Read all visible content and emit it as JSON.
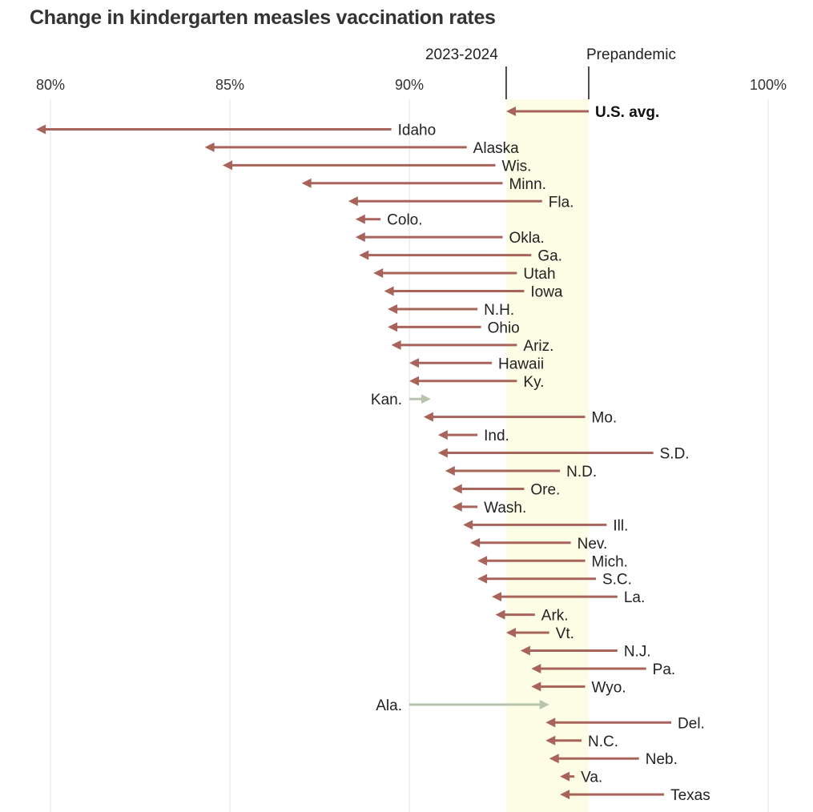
{
  "title": "Change in kindergarten measles vaccination rates",
  "colors": {
    "decrease": "#a8645a",
    "increase": "#b8c4ae",
    "band": "#fdfde6",
    "gridline": "#e3e3e3",
    "refline": "#222222"
  },
  "chart_data": {
    "type": "arrow-dumbbell",
    "title": "Change in kindergarten measles vaccination rates",
    "x_axis": {
      "ticks": [
        80,
        85,
        90,
        100
      ],
      "tick_labels": [
        "80%",
        "85%",
        "90%",
        "100%"
      ],
      "range": [
        80,
        100
      ]
    },
    "reference_lines": [
      {
        "label": "2023-2024",
        "value": 92.7
      },
      {
        "label": "Prepandemic",
        "value": 95.0
      }
    ],
    "rows": [
      {
        "name": "U.S. avg.",
        "from": 95.0,
        "to": 92.7,
        "bold": true
      },
      {
        "name": "Idaho",
        "from": 89.5,
        "to": 79.6
      },
      {
        "name": "Alaska",
        "from": 91.6,
        "to": 84.3
      },
      {
        "name": "Wis.",
        "from": 92.4,
        "to": 84.8
      },
      {
        "name": "Minn.",
        "from": 92.6,
        "to": 87.0
      },
      {
        "name": "Fla.",
        "from": 93.7,
        "to": 88.3
      },
      {
        "name": "Colo.",
        "from": 89.2,
        "to": 88.5
      },
      {
        "name": "Okla.",
        "from": 92.6,
        "to": 88.5
      },
      {
        "name": "Ga.",
        "from": 93.4,
        "to": 88.6
      },
      {
        "name": "Utah",
        "from": 93.0,
        "to": 89.0
      },
      {
        "name": "Iowa",
        "from": 93.2,
        "to": 89.3
      },
      {
        "name": "N.H.",
        "from": 91.9,
        "to": 89.4
      },
      {
        "name": "Ohio",
        "from": 92.0,
        "to": 89.4
      },
      {
        "name": "Ariz.",
        "from": 93.0,
        "to": 89.5
      },
      {
        "name": "Hawaii",
        "from": 92.3,
        "to": 90.0
      },
      {
        "name": "Ky.",
        "from": 93.0,
        "to": 90.0
      },
      {
        "name": "Kan.",
        "from": 90.0,
        "to": 90.6
      },
      {
        "name": "Mo.",
        "from": 94.9,
        "to": 90.4
      },
      {
        "name": "Ind.",
        "from": 91.9,
        "to": 90.8
      },
      {
        "name": "S.D.",
        "from": 96.8,
        "to": 90.8
      },
      {
        "name": "N.D.",
        "from": 94.2,
        "to": 91.0
      },
      {
        "name": "Ore.",
        "from": 93.2,
        "to": 91.2
      },
      {
        "name": "Wash.",
        "from": 91.9,
        "to": 91.2
      },
      {
        "name": "Ill.",
        "from": 95.5,
        "to": 91.5
      },
      {
        "name": "Nev.",
        "from": 94.5,
        "to": 91.7
      },
      {
        "name": "Mich.",
        "from": 94.9,
        "to": 91.9
      },
      {
        "name": "S.C.",
        "from": 95.2,
        "to": 91.9
      },
      {
        "name": "La.",
        "from": 95.8,
        "to": 92.3
      },
      {
        "name": "Ark.",
        "from": 93.5,
        "to": 92.4
      },
      {
        "name": "Vt.",
        "from": 93.9,
        "to": 92.7
      },
      {
        "name": "N.J.",
        "from": 95.8,
        "to": 93.1
      },
      {
        "name": "Pa.",
        "from": 96.6,
        "to": 93.4
      },
      {
        "name": "Wyo.",
        "from": 94.9,
        "to": 93.4
      },
      {
        "name": "Ala.",
        "from": 90.0,
        "to": 93.9
      },
      {
        "name": "Del.",
        "from": 97.3,
        "to": 93.8
      },
      {
        "name": "N.C.",
        "from": 94.8,
        "to": 93.8
      },
      {
        "name": "Neb.",
        "from": 96.4,
        "to": 93.9
      },
      {
        "name": "Va.",
        "from": 94.6,
        "to": 94.2
      },
      {
        "name": "Texas",
        "from": 97.1,
        "to": 94.2
      }
    ]
  }
}
